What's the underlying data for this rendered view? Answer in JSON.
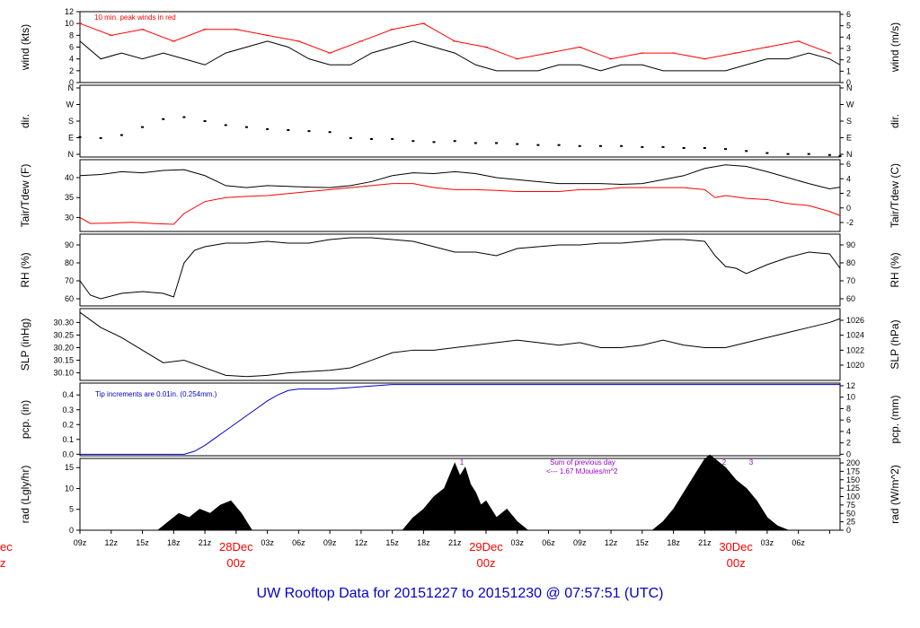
{
  "title": "UW Rooftop Data for 20151227  to  20151230 @ 07:57:51  (UTC)",
  "colors": {
    "primary": "#000000",
    "red": "#ff0000",
    "blue": "#0000cc",
    "purple": "#9900cc",
    "title": "#0000cc"
  },
  "chart_data": [
    {
      "id": "wind",
      "type": "line",
      "ylabel_left": "wind (kts)",
      "ylabel_right": "wind (m/s)",
      "yticks_left": [
        "0",
        "2",
        "4",
        "6",
        "8",
        "10",
        "12"
      ],
      "yticks_right": [
        "0",
        "1",
        "2",
        "3",
        "4",
        "5",
        "6"
      ],
      "ylim": [
        0,
        12
      ],
      "annotation": "10 min. peak winds in red",
      "series": [
        {
          "name": "wind speed (kts)",
          "color": "#000000",
          "x": [
            0,
            2,
            4,
            6,
            8,
            10,
            12,
            14,
            16,
            18,
            20,
            22,
            24,
            26,
            28,
            30,
            32,
            34,
            36,
            38,
            40,
            42,
            44,
            46,
            48,
            50,
            52,
            54,
            56,
            58,
            60,
            62,
            64,
            66,
            68,
            70,
            72,
            73
          ],
          "y": [
            7,
            4,
            5,
            4,
            5,
            4,
            3,
            5,
            6,
            7,
            6,
            4,
            3,
            3,
            5,
            6,
            7,
            6,
            5,
            3,
            2,
            2,
            2,
            3,
            3,
            2,
            3,
            3,
            2,
            2,
            2,
            2,
            3,
            4,
            4,
            5,
            4,
            3
          ]
        },
        {
          "name": "10 min. peak winds",
          "color": "#ff0000",
          "x": [
            0,
            3,
            6,
            9,
            12,
            15,
            18,
            21,
            24,
            27,
            30,
            33,
            36,
            39,
            42,
            45,
            48,
            51,
            54,
            57,
            60,
            63,
            66,
            69,
            72
          ],
          "y": [
            10,
            8,
            9,
            7,
            9,
            9,
            8,
            7,
            5,
            7,
            9,
            10,
            7,
            6,
            4,
            5,
            6,
            4,
            5,
            5,
            4,
            5,
            6,
            7,
            5
          ]
        }
      ]
    },
    {
      "id": "dir",
      "type": "scatter",
      "ylabel_left": "dir.",
      "ylabel_right": "dir.",
      "yticks_left": [
        "N",
        "E",
        "S",
        "W",
        "N"
      ],
      "yticks_right": [
        "N",
        "E",
        "S",
        "W",
        "N"
      ],
      "ylim": [
        0,
        360
      ],
      "series": [
        {
          "name": "wind direction (deg)",
          "color": "#000000",
          "x": [
            0,
            2,
            4,
            6,
            8,
            10,
            12,
            14,
            16,
            18,
            20,
            22,
            24,
            26,
            28,
            30,
            32,
            34,
            36,
            38,
            40,
            42,
            44,
            46,
            48,
            50,
            52,
            54,
            56,
            58,
            60,
            62,
            64,
            66,
            68,
            70,
            72,
            73
          ],
          "y": [
            100,
            95,
            110,
            150,
            190,
            200,
            180,
            160,
            150,
            140,
            135,
            130,
            125,
            95,
            90,
            90,
            80,
            75,
            80,
            70,
            70,
            65,
            60,
            60,
            55,
            55,
            55,
            50,
            50,
            45,
            45,
            40,
            30,
            20,
            15,
            15,
            10,
            5
          ]
        }
      ]
    },
    {
      "id": "temp",
      "type": "line",
      "ylabel_left": "Tair/Tdew (F)",
      "ylabel_right": "Tair/Tdew (C)",
      "yticks_left": [
        "30",
        "35",
        "40"
      ],
      "yticks_right": [
        "-2",
        "0",
        "2",
        "4",
        "6"
      ],
      "ylim": [
        26.5,
        44.5
      ],
      "series": [
        {
          "name": "Tair",
          "color": "#000000",
          "x": [
            0,
            2,
            4,
            6,
            8,
            10,
            12,
            14,
            16,
            18,
            20,
            22,
            24,
            26,
            28,
            30,
            32,
            34,
            36,
            38,
            40,
            42,
            44,
            46,
            48,
            50,
            52,
            54,
            56,
            58,
            60,
            62,
            64,
            66,
            68,
            70,
            72,
            73
          ],
          "y": [
            40.5,
            40.8,
            41.5,
            41.2,
            41.8,
            42,
            40.5,
            38,
            37.5,
            38,
            37.8,
            37.6,
            37.5,
            38,
            39,
            40.5,
            41.2,
            41,
            41.5,
            41,
            40,
            39.5,
            39,
            38.5,
            38.5,
            38.5,
            38.3,
            38.5,
            39.5,
            40.5,
            42.3,
            43.2,
            42.8,
            41.5,
            40,
            38.5,
            37.2,
            37.6
          ]
        },
        {
          "name": "Tdew",
          "color": "#ff0000",
          "x": [
            0,
            1,
            3,
            5,
            7,
            9,
            10,
            12,
            14,
            16,
            18,
            20,
            22,
            24,
            26,
            28,
            30,
            32,
            34,
            36,
            38,
            40,
            42,
            44,
            46,
            48,
            50,
            52,
            54,
            56,
            58,
            60,
            61,
            62,
            64,
            66,
            68,
            70,
            72,
            73
          ],
          "y": [
            30,
            28.5,
            28.6,
            28.8,
            28.5,
            28.3,
            31,
            34,
            35,
            35.3,
            35.5,
            36,
            36.5,
            37,
            37.5,
            38,
            38.5,
            38.5,
            37.5,
            37,
            37,
            36.8,
            36.5,
            36.5,
            36.5,
            37,
            37,
            37.5,
            37.5,
            37.5,
            37.5,
            37,
            35,
            35.5,
            34.8,
            34.5,
            33.5,
            33,
            31.5,
            30.5
          ]
        }
      ]
    },
    {
      "id": "rh",
      "type": "line",
      "ylabel_left": "RH (%)",
      "ylabel_right": "RH (%)",
      "yticks_left": [
        "60",
        "70",
        "80",
        "90"
      ],
      "yticks_right": [
        "60",
        "70",
        "80",
        "90"
      ],
      "ylim": [
        56,
        96
      ],
      "series": [
        {
          "name": "RH",
          "color": "#000000",
          "x": [
            0,
            1,
            2,
            4,
            6,
            8,
            9,
            10,
            11,
            12,
            14,
            16,
            18,
            20,
            22,
            24,
            26,
            28,
            30,
            32,
            34,
            36,
            38,
            40,
            42,
            44,
            46,
            48,
            50,
            52,
            54,
            56,
            58,
            60,
            61,
            62,
            63,
            64,
            66,
            68,
            70,
            72,
            73
          ],
          "y": [
            70,
            62,
            60,
            63,
            64,
            63,
            61,
            80,
            87,
            89,
            91,
            91,
            92,
            91,
            91,
            93,
            94,
            94,
            93,
            92,
            89,
            86,
            86,
            84,
            88,
            89,
            90,
            90,
            91,
            91,
            92,
            93,
            93,
            92,
            84,
            78,
            77,
            74,
            79,
            83,
            86,
            85,
            77
          ]
        }
      ]
    },
    {
      "id": "slp",
      "type": "line",
      "ylabel_left": "SLP (inHg)",
      "ylabel_right": "SLP (hPa)",
      "yticks_left": [
        "30.10",
        "30.15",
        "30.20",
        "30.25",
        "30.30"
      ],
      "yticks_right": [
        "1020",
        "1022",
        "1024",
        "1026"
      ],
      "ylim": [
        30.07,
        30.355
      ],
      "series": [
        {
          "name": "SLP",
          "color": "#000000",
          "x": [
            0,
            2,
            4,
            6,
            8,
            10,
            12,
            14,
            16,
            18,
            20,
            22,
            24,
            26,
            28,
            30,
            32,
            34,
            36,
            38,
            40,
            42,
            44,
            46,
            48,
            50,
            52,
            54,
            56,
            58,
            60,
            62,
            64,
            66,
            68,
            70,
            72,
            73
          ],
          "y": [
            30.34,
            30.28,
            30.24,
            30.19,
            30.14,
            30.15,
            30.12,
            30.09,
            30.085,
            30.09,
            30.1,
            30.105,
            30.11,
            30.12,
            30.15,
            30.18,
            30.19,
            30.19,
            30.2,
            30.21,
            30.22,
            30.23,
            30.22,
            30.21,
            30.22,
            30.2,
            30.2,
            30.21,
            30.23,
            30.21,
            30.2,
            30.2,
            30.22,
            30.24,
            30.26,
            30.28,
            30.3,
            30.315
          ]
        }
      ]
    },
    {
      "id": "pcp",
      "type": "line",
      "ylabel_left": "pcp. (in)",
      "ylabel_right": "pcp. (mm)",
      "yticks_left": [
        "0.0",
        "0.1",
        "0.2",
        "0.3",
        "0.4"
      ],
      "yticks_right": [
        "0",
        "2",
        "4",
        "6",
        "8",
        "10",
        "12"
      ],
      "ylim": [
        -0.01,
        0.48
      ],
      "annotation": "Tip increments are 0.01in. (0.254mm.)",
      "series": [
        {
          "name": "precipitation",
          "color": "#0000cc",
          "x": [
            0,
            10,
            11,
            12,
            13,
            14,
            15,
            16,
            17,
            18,
            19,
            20,
            21,
            22,
            24,
            26,
            28,
            30,
            32,
            34,
            36,
            38,
            40,
            50,
            60,
            73
          ],
          "y": [
            0,
            0,
            0.02,
            0.06,
            0.11,
            0.16,
            0.21,
            0.26,
            0.31,
            0.36,
            0.4,
            0.43,
            0.44,
            0.44,
            0.44,
            0.45,
            0.46,
            0.47,
            0.47,
            0.47,
            0.47,
            0.47,
            0.47,
            0.47,
            0.47,
            0.47
          ]
        }
      ]
    },
    {
      "id": "rad",
      "type": "area",
      "ylabel_left": "rad (Lgly/hr)",
      "ylabel_right": "rad (W/m^2)",
      "yticks_left": [
        "0",
        "5",
        "10",
        "15"
      ],
      "yticks_right": [
        "0",
        "25",
        "50",
        "75",
        "100",
        "125",
        "150",
        "175",
        "200"
      ],
      "ylim": [
        0,
        17.2
      ],
      "annotation": [
        "Sum of previous day",
        "<--- 1.67 MJoules/m^2"
      ],
      "day_labels": [
        "1",
        "2",
        "3"
      ],
      "series": [
        {
          "name": "solar radiation",
          "color": "#000000",
          "x": [
            0,
            7.5,
            8.5,
            9.5,
            10.5,
            11.5,
            12.5,
            13.5,
            14.5,
            15.5,
            16.5,
            24,
            31,
            32,
            33,
            34,
            35,
            36,
            36.5,
            37,
            37.5,
            38,
            38.5,
            39,
            40,
            41,
            42,
            43,
            48,
            55,
            56,
            57,
            58,
            59,
            60,
            60.5,
            61,
            61.5,
            62,
            63,
            64,
            65,
            66,
            67,
            68,
            73
          ],
          "y": [
            0,
            0,
            2,
            4,
            3,
            5,
            4,
            6,
            7,
            4,
            0,
            0,
            0,
            3,
            5,
            8,
            10,
            16,
            13,
            15,
            11,
            9,
            6,
            7,
            3,
            5,
            2,
            0,
            0,
            0,
            2,
            5,
            9,
            13,
            17,
            18,
            17,
            16,
            15,
            12,
            10,
            7,
            3,
            1,
            0,
            0
          ]
        }
      ]
    }
  ],
  "x_axis": {
    "hour_labels": [
      "09z",
      "12z",
      "15z",
      "18z",
      "21z",
      "03z",
      "06z",
      "09z",
      "12z",
      "15z",
      "18z",
      "21z",
      "03z",
      "06z",
      "09z",
      "12z",
      "15z",
      "18z",
      "21z",
      "03z",
      "06z"
    ],
    "days": [
      {
        "date": "28Dec",
        "time": "00z"
      },
      {
        "date": "29Dec",
        "time": "00z"
      },
      {
        "date": "30Dec",
        "time": "00z"
      }
    ],
    "clipped_left": {
      "date": "ec",
      "time": "z"
    }
  }
}
